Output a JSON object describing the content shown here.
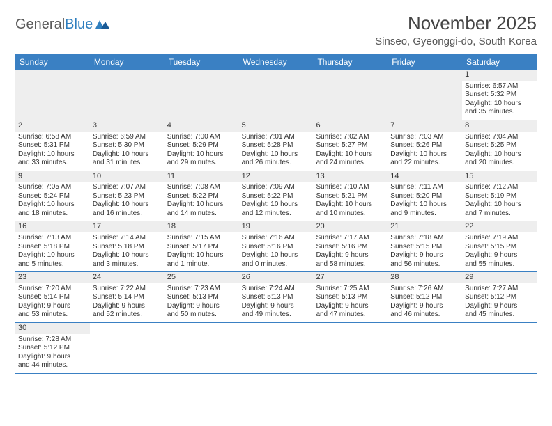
{
  "logo": {
    "part1": "General",
    "part2": "Blue"
  },
  "title": "November 2025",
  "location": "Sinseo, Gyeonggi-do, South Korea",
  "colors": {
    "header_bg": "#3a80c3",
    "header_text": "#ffffff",
    "daynum_bg": "#eeeeee",
    "text": "#333333",
    "border": "#3a80c3"
  },
  "dayNames": [
    "Sunday",
    "Monday",
    "Tuesday",
    "Wednesday",
    "Thursday",
    "Friday",
    "Saturday"
  ],
  "weeks": [
    [
      null,
      null,
      null,
      null,
      null,
      null,
      {
        "n": "1",
        "sr": "Sunrise: 6:57 AM",
        "ss": "Sunset: 5:32 PM",
        "dl1": "Daylight: 10 hours",
        "dl2": "and 35 minutes."
      }
    ],
    [
      {
        "n": "2",
        "sr": "Sunrise: 6:58 AM",
        "ss": "Sunset: 5:31 PM",
        "dl1": "Daylight: 10 hours",
        "dl2": "and 33 minutes."
      },
      {
        "n": "3",
        "sr": "Sunrise: 6:59 AM",
        "ss": "Sunset: 5:30 PM",
        "dl1": "Daylight: 10 hours",
        "dl2": "and 31 minutes."
      },
      {
        "n": "4",
        "sr": "Sunrise: 7:00 AM",
        "ss": "Sunset: 5:29 PM",
        "dl1": "Daylight: 10 hours",
        "dl2": "and 29 minutes."
      },
      {
        "n": "5",
        "sr": "Sunrise: 7:01 AM",
        "ss": "Sunset: 5:28 PM",
        "dl1": "Daylight: 10 hours",
        "dl2": "and 26 minutes."
      },
      {
        "n": "6",
        "sr": "Sunrise: 7:02 AM",
        "ss": "Sunset: 5:27 PM",
        "dl1": "Daylight: 10 hours",
        "dl2": "and 24 minutes."
      },
      {
        "n": "7",
        "sr": "Sunrise: 7:03 AM",
        "ss": "Sunset: 5:26 PM",
        "dl1": "Daylight: 10 hours",
        "dl2": "and 22 minutes."
      },
      {
        "n": "8",
        "sr": "Sunrise: 7:04 AM",
        "ss": "Sunset: 5:25 PM",
        "dl1": "Daylight: 10 hours",
        "dl2": "and 20 minutes."
      }
    ],
    [
      {
        "n": "9",
        "sr": "Sunrise: 7:05 AM",
        "ss": "Sunset: 5:24 PM",
        "dl1": "Daylight: 10 hours",
        "dl2": "and 18 minutes."
      },
      {
        "n": "10",
        "sr": "Sunrise: 7:07 AM",
        "ss": "Sunset: 5:23 PM",
        "dl1": "Daylight: 10 hours",
        "dl2": "and 16 minutes."
      },
      {
        "n": "11",
        "sr": "Sunrise: 7:08 AM",
        "ss": "Sunset: 5:22 PM",
        "dl1": "Daylight: 10 hours",
        "dl2": "and 14 minutes."
      },
      {
        "n": "12",
        "sr": "Sunrise: 7:09 AM",
        "ss": "Sunset: 5:22 PM",
        "dl1": "Daylight: 10 hours",
        "dl2": "and 12 minutes."
      },
      {
        "n": "13",
        "sr": "Sunrise: 7:10 AM",
        "ss": "Sunset: 5:21 PM",
        "dl1": "Daylight: 10 hours",
        "dl2": "and 10 minutes."
      },
      {
        "n": "14",
        "sr": "Sunrise: 7:11 AM",
        "ss": "Sunset: 5:20 PM",
        "dl1": "Daylight: 10 hours",
        "dl2": "and 9 minutes."
      },
      {
        "n": "15",
        "sr": "Sunrise: 7:12 AM",
        "ss": "Sunset: 5:19 PM",
        "dl1": "Daylight: 10 hours",
        "dl2": "and 7 minutes."
      }
    ],
    [
      {
        "n": "16",
        "sr": "Sunrise: 7:13 AM",
        "ss": "Sunset: 5:18 PM",
        "dl1": "Daylight: 10 hours",
        "dl2": "and 5 minutes."
      },
      {
        "n": "17",
        "sr": "Sunrise: 7:14 AM",
        "ss": "Sunset: 5:18 PM",
        "dl1": "Daylight: 10 hours",
        "dl2": "and 3 minutes."
      },
      {
        "n": "18",
        "sr": "Sunrise: 7:15 AM",
        "ss": "Sunset: 5:17 PM",
        "dl1": "Daylight: 10 hours",
        "dl2": "and 1 minute."
      },
      {
        "n": "19",
        "sr": "Sunrise: 7:16 AM",
        "ss": "Sunset: 5:16 PM",
        "dl1": "Daylight: 10 hours",
        "dl2": "and 0 minutes."
      },
      {
        "n": "20",
        "sr": "Sunrise: 7:17 AM",
        "ss": "Sunset: 5:16 PM",
        "dl1": "Daylight: 9 hours",
        "dl2": "and 58 minutes."
      },
      {
        "n": "21",
        "sr": "Sunrise: 7:18 AM",
        "ss": "Sunset: 5:15 PM",
        "dl1": "Daylight: 9 hours",
        "dl2": "and 56 minutes."
      },
      {
        "n": "22",
        "sr": "Sunrise: 7:19 AM",
        "ss": "Sunset: 5:15 PM",
        "dl1": "Daylight: 9 hours",
        "dl2": "and 55 minutes."
      }
    ],
    [
      {
        "n": "23",
        "sr": "Sunrise: 7:20 AM",
        "ss": "Sunset: 5:14 PM",
        "dl1": "Daylight: 9 hours",
        "dl2": "and 53 minutes."
      },
      {
        "n": "24",
        "sr": "Sunrise: 7:22 AM",
        "ss": "Sunset: 5:14 PM",
        "dl1": "Daylight: 9 hours",
        "dl2": "and 52 minutes."
      },
      {
        "n": "25",
        "sr": "Sunrise: 7:23 AM",
        "ss": "Sunset: 5:13 PM",
        "dl1": "Daylight: 9 hours",
        "dl2": "and 50 minutes."
      },
      {
        "n": "26",
        "sr": "Sunrise: 7:24 AM",
        "ss": "Sunset: 5:13 PM",
        "dl1": "Daylight: 9 hours",
        "dl2": "and 49 minutes."
      },
      {
        "n": "27",
        "sr": "Sunrise: 7:25 AM",
        "ss": "Sunset: 5:13 PM",
        "dl1": "Daylight: 9 hours",
        "dl2": "and 47 minutes."
      },
      {
        "n": "28",
        "sr": "Sunrise: 7:26 AM",
        "ss": "Sunset: 5:12 PM",
        "dl1": "Daylight: 9 hours",
        "dl2": "and 46 minutes."
      },
      {
        "n": "29",
        "sr": "Sunrise: 7:27 AM",
        "ss": "Sunset: 5:12 PM",
        "dl1": "Daylight: 9 hours",
        "dl2": "and 45 minutes."
      }
    ],
    [
      {
        "n": "30",
        "sr": "Sunrise: 7:28 AM",
        "ss": "Sunset: 5:12 PM",
        "dl1": "Daylight: 9 hours",
        "dl2": "and 44 minutes."
      },
      null,
      null,
      null,
      null,
      null,
      null
    ]
  ]
}
